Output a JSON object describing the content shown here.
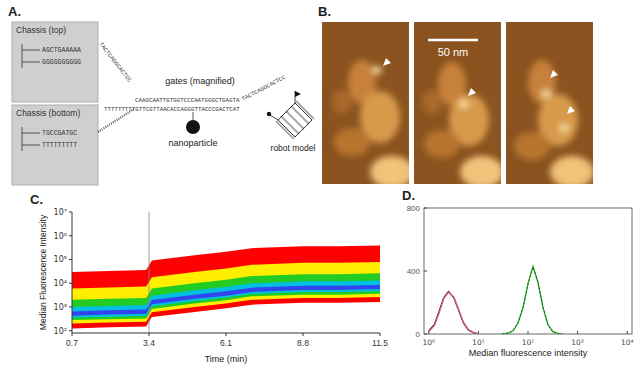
{
  "panels": {
    "a": {
      "label": "A.",
      "chassis_top": {
        "title": "Chassis (top)",
        "strands": [
          "AGCTGAAAAA",
          "GGGGGGGGGG"
        ]
      },
      "chassis_bottom": {
        "title": "Chassis (bottom)",
        "strands": [
          "TGCCGATGC",
          "TTTTTTTTT"
        ]
      },
      "diagonal_strand": "TACTCAGGCACTCC",
      "gates_label": "gates (magnified)",
      "gate_top": "CAAGCAATTGTGGTCCCAATGGGCTGAGTA",
      "gate_bottom": "TTTTTTTTTGTTCGTTAACACCAGGGTTACCCGACTCAT",
      "gate_right": "TACTCAGGCACTCC",
      "nanoparticle_label": "nanoparticle",
      "robot_label": "robot model"
    },
    "b": {
      "label": "B.",
      "scale_bar": "50 nm"
    }
  },
  "chart_data": [
    {
      "type": "density",
      "label": "C.",
      "x_label": "Time (min)",
      "y_label": "Median Fluorescence Intensity",
      "log": "y",
      "xlim": [
        0.7,
        11.5
      ],
      "xticks": [
        0.7,
        3.4,
        6.1,
        8.8,
        11.5
      ],
      "ylim": [
        80,
        10000000
      ],
      "yticks": [
        {
          "value": 100,
          "label": "10²"
        },
        {
          "value": 1000,
          "label": "10³"
        },
        {
          "value": 10000,
          "label": "10⁴"
        },
        {
          "value": 100000,
          "label": "10⁵"
        },
        {
          "value": 1000000,
          "label": "10⁶"
        },
        {
          "value": 10000000,
          "label": "10⁷"
        }
      ],
      "vlines": [
        3.4
      ],
      "x": [
        0.7,
        2,
        3.3,
        3.5,
        5,
        6.1,
        7,
        8.8,
        10,
        11.5
      ],
      "bands": [
        {
          "color": "#ff0000",
          "lower": [
            125,
            140,
            150,
            380,
            620,
            880,
            1250,
            1500,
            1500,
            1600
          ],
          "upper": [
            30000,
            33000,
            36000,
            90000,
            150000,
            210000,
            300000,
            360000,
            360000,
            390000
          ]
        },
        {
          "color": "#ffee00",
          "lower": [
            200,
            220,
            240,
            600,
            1000,
            1400,
            2000,
            2400,
            2400,
            2600
          ],
          "upper": [
            6000,
            6600,
            7200,
            18000,
            30000,
            42000,
            60000,
            72000,
            72000,
            78000
          ]
        },
        {
          "color": "#22cc22",
          "lower": [
            280,
            300,
            330,
            830,
            1400,
            1900,
            2800,
            3300,
            3300,
            3600
          ],
          "upper": [
            2000,
            2200,
            2400,
            6000,
            10000,
            14000,
            20000,
            24000,
            24000,
            26000
          ]
        },
        {
          "color": "#00bfe0",
          "lower": [
            360,
            390,
            430,
            1070,
            1800,
            2500,
            3600,
            4300,
            4300,
            4600
          ],
          "upper": [
            1000,
            1100,
            1200,
            3000,
            5000,
            7000,
            10000,
            12000,
            12000,
            13000
          ]
        },
        {
          "color": "#3344ee",
          "lower": [
            430,
            480,
            520,
            1300,
            2200,
            3000,
            4300,
            5200,
            5200,
            5700
          ],
          "upper": [
            650,
            720,
            780,
            1950,
            3250,
            4550,
            6500,
            7800,
            7800,
            8450
          ]
        }
      ]
    },
    {
      "type": "line",
      "label": "D.",
      "x_label": "Median fluorescence intensity",
      "log": "x",
      "xlim": [
        0.8,
        12500
      ],
      "xticks": [
        {
          "value": 1,
          "label": "10⁰"
        },
        {
          "value": 10,
          "label": "10¹"
        },
        {
          "value": 100,
          "label": "10²"
        },
        {
          "value": 1000,
          "label": "10³"
        },
        {
          "value": 10000,
          "label": "10⁴"
        }
      ],
      "ylim": [
        0,
        800
      ],
      "yticks": [
        0,
        400,
        800
      ],
      "series": [
        {
          "color": "#000000",
          "x": [
            1,
            1.3,
            1.6,
            2,
            2.5,
            3.2,
            4,
            5,
            6.3,
            8,
            10
          ],
          "values": [
            20,
            60,
            140,
            230,
            270,
            230,
            150,
            70,
            25,
            8,
            0
          ]
        },
        {
          "color": "#e060a0",
          "x": [
            1,
            1.3,
            1.6,
            2,
            2.5,
            3.2,
            4,
            5,
            6.3,
            8,
            10
          ],
          "values": [
            15,
            55,
            130,
            225,
            265,
            235,
            155,
            75,
            28,
            10,
            0
          ]
        },
        {
          "color": "#22aa22",
          "x": [
            30,
            40,
            50,
            63,
            80,
            100,
            126,
            158,
            200,
            251,
            316,
            400,
            500
          ],
          "values": [
            0,
            5,
            20,
            70,
            170,
            320,
            430,
            330,
            170,
            60,
            15,
            3,
            0
          ]
        },
        {
          "color": "#1a5a1a",
          "line_style": "dashed",
          "x": [
            30,
            40,
            50,
            63,
            80,
            100,
            126,
            158,
            200,
            251,
            316,
            400,
            500
          ],
          "values": [
            0,
            6,
            22,
            75,
            175,
            315,
            425,
            335,
            175,
            62,
            16,
            3,
            0
          ]
        }
      ]
    }
  ]
}
